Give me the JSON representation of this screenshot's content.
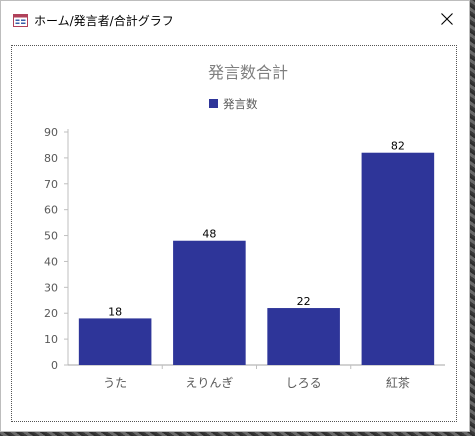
{
  "window": {
    "title": "ホーム/発言者/合計グラフ",
    "icon": "form-icon",
    "close_icon": "close-icon"
  },
  "chart_data": {
    "type": "bar",
    "title": "発言数合計",
    "legend_position": "top",
    "categories": [
      "うた",
      "えりんぎ",
      "しろる",
      "紅茶"
    ],
    "series": [
      {
        "name": "発言数",
        "values": [
          18,
          48,
          22,
          82
        ],
        "color": "#2e3599"
      }
    ],
    "yticks": [
      "0",
      "10",
      "20",
      "30",
      "40",
      "50",
      "60",
      "70",
      "80",
      "90"
    ],
    "ylim": [
      0,
      90
    ],
    "xlabel": "",
    "ylabel": "",
    "data_labels": true,
    "grid": false
  },
  "colors": {
    "bar": "#2e3599",
    "title_text": "#7f7f7f",
    "axis_text": "#595959"
  }
}
